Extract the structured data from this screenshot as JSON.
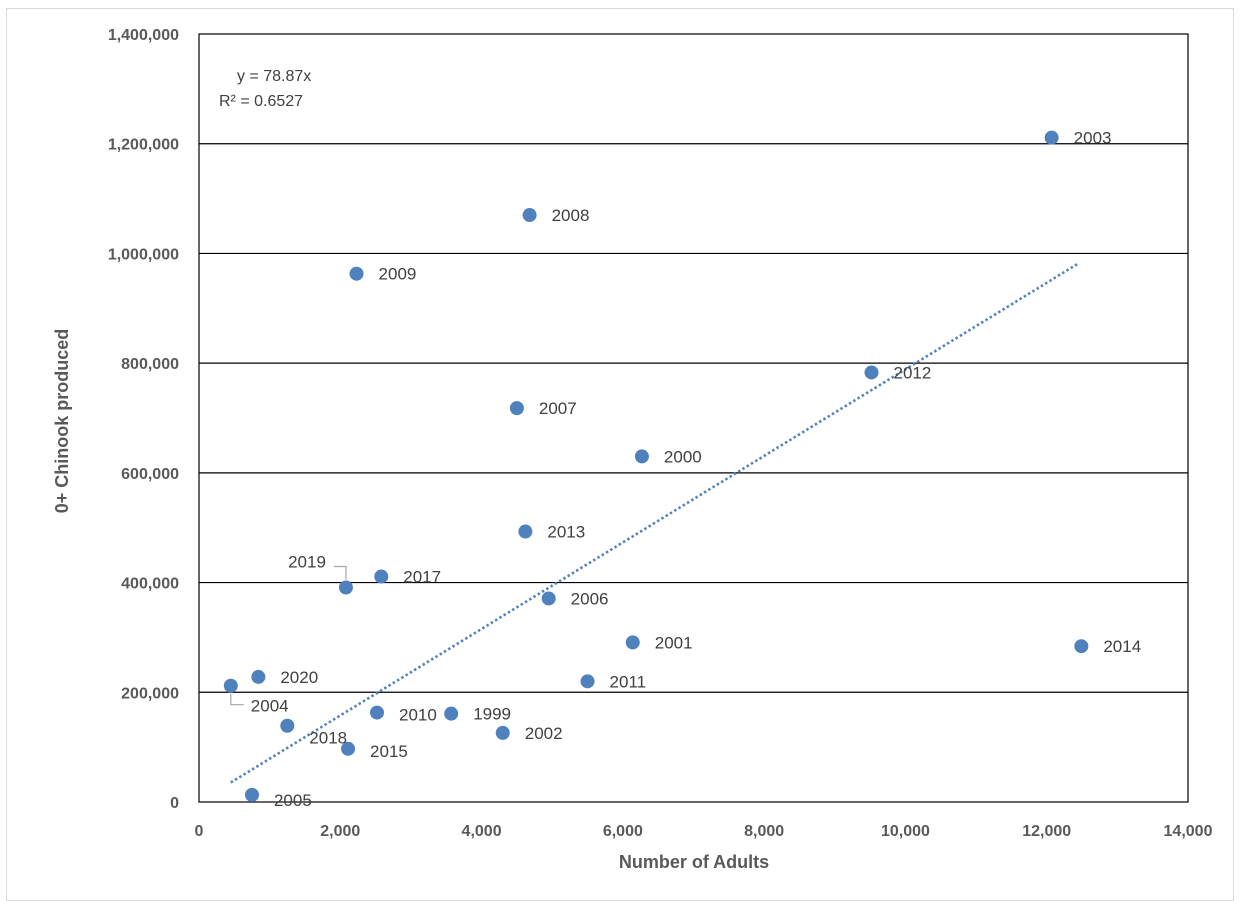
{
  "chart_data": {
    "type": "scatter",
    "xlabel": "Number of Adults",
    "ylabel": "0+ Chinook produced",
    "xlim": [
      0,
      14000
    ],
    "ylim": [
      0,
      1400000
    ],
    "x_ticks": [
      0,
      2000,
      4000,
      6000,
      8000,
      10000,
      12000,
      14000
    ],
    "x_tick_labels": [
      "0",
      "2,000",
      "4,000",
      "6,000",
      "8,000",
      "10,000",
      "12,000",
      "14,000"
    ],
    "y_ticks": [
      0,
      200000,
      400000,
      600000,
      800000,
      1000000,
      1200000,
      1400000
    ],
    "y_tick_labels": [
      "0",
      "200,000",
      "400,000",
      "600,000",
      "800,000",
      "1,000,000",
      "1,200,000",
      "1,400,000"
    ],
    "grid": "horizontal",
    "point_color": "#4f81bd",
    "trendline_color": "#4f81bd",
    "trendline": {
      "slope": 78.87,
      "x_range": [
        450,
        12450
      ],
      "equation": "y = 78.87x",
      "r_squared": "R² = 0.6527"
    },
    "points": [
      {
        "label": "1999",
        "x": 3570,
        "y": 161000
      },
      {
        "label": "2000",
        "x": 6270,
        "y": 630000
      },
      {
        "label": "2001",
        "x": 6140,
        "y": 291000
      },
      {
        "label": "2002",
        "x": 4300,
        "y": 126000
      },
      {
        "label": "2003",
        "x": 12070,
        "y": 1211000
      },
      {
        "label": "2004",
        "x": 450,
        "y": 212000
      },
      {
        "label": "2005",
        "x": 750,
        "y": 13000
      },
      {
        "label": "2006",
        "x": 4950,
        "y": 371000
      },
      {
        "label": "2007",
        "x": 4500,
        "y": 718000
      },
      {
        "label": "2008",
        "x": 4680,
        "y": 1070000
      },
      {
        "label": "2009",
        "x": 2230,
        "y": 963000
      },
      {
        "label": "2010",
        "x": 2520,
        "y": 163000
      },
      {
        "label": "2011",
        "x": 5500,
        "y": 220000
      },
      {
        "label": "2012",
        "x": 9520,
        "y": 783000
      },
      {
        "label": "2013",
        "x": 4620,
        "y": 493000
      },
      {
        "label": "2014",
        "x": 12490,
        "y": 284000
      },
      {
        "label": "2015",
        "x": 2110,
        "y": 97000
      },
      {
        "label": "2017",
        "x": 2580,
        "y": 411000
      },
      {
        "label": "2018",
        "x": 1250,
        "y": 139000
      },
      {
        "label": "2019",
        "x": 2080,
        "y": 391000
      },
      {
        "label": "2020",
        "x": 840,
        "y": 228000
      }
    ]
  }
}
